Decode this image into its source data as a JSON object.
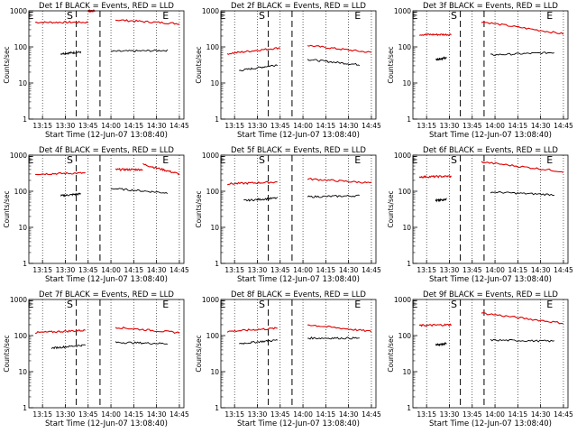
{
  "chart_data": [
    {
      "type": "line",
      "title": "Det 1f BLACK = Events, RED = LLD",
      "xlabel": "Start Time (12-Jun-07 13:08:40)",
      "ylabel": "Counts/sec",
      "x_ticks": [
        "13:15",
        "13:30",
        "13:45",
        "14:00",
        "14:15",
        "14:30",
        "14:45"
      ],
      "y_ticks": [
        "1",
        "10",
        "100",
        "1000"
      ],
      "markers": [
        "E",
        "S",
        "E"
      ],
      "series": [
        {
          "color": "#e00000",
          "segments": [
            {
              "x": [
                13.17,
                13.75
              ],
              "y": [
                480,
                480
              ]
            },
            {
              "x": [
                13.75,
                13.82
              ],
              "y": [
                1000,
                1000
              ]
            },
            {
              "x": [
                14.05,
                14.75
              ],
              "y": [
                560,
                440
              ]
            }
          ]
        },
        {
          "color": "#000000",
          "segments": [
            {
              "x": [
                13.45,
                13.67
              ],
              "y": [
                65,
                72
              ]
            },
            {
              "x": [
                14.0,
                14.62
              ],
              "y": [
                75,
                80
              ]
            }
          ]
        }
      ]
    },
    {
      "type": "line",
      "title": "Det 2f BLACK = Events, RED = LLD",
      "xlabel": "Start Time (12-Jun-07 13:08:40)",
      "ylabel": "Counts/sec",
      "x_ticks": [
        "13:15",
        "13:30",
        "13:45",
        "14:00",
        "14:15",
        "14:30",
        "14:45"
      ],
      "y_ticks": [
        "1",
        "10",
        "100",
        "1000"
      ],
      "markers": [
        "E",
        "S",
        "E"
      ],
      "series": [
        {
          "color": "#e00000",
          "segments": [
            {
              "x": [
                13.17,
                13.75
              ],
              "y": [
                65,
                95
              ]
            },
            {
              "x": [
                14.05,
                14.75
              ],
              "y": [
                110,
                70
              ]
            }
          ]
        },
        {
          "color": "#000000",
          "segments": [
            {
              "x": [
                13.3,
                13.72
              ],
              "y": [
                22,
                32
              ]
            },
            {
              "x": [
                14.05,
                14.62
              ],
              "y": [
                45,
                32
              ]
            }
          ]
        }
      ]
    },
    {
      "type": "line",
      "title": "Det 3f BLACK = Events, RED = LLD",
      "xlabel": "Start Time (12-Jun-07 13:08:40)",
      "ylabel": "Counts/sec",
      "x_ticks": [
        "13:15",
        "13:30",
        "13:45",
        "14:00",
        "14:15",
        "14:30",
        "14:45"
      ],
      "y_ticks": [
        "1",
        "10",
        "100",
        "1000"
      ],
      "markers": [
        "E",
        "S",
        "E"
      ],
      "series": [
        {
          "color": "#e00000",
          "segments": [
            {
              "x": [
                13.17,
                13.52
              ],
              "y": [
                220,
                220
              ]
            },
            {
              "x": [
                13.85,
                14.75
              ],
              "y": [
                500,
                230
              ]
            }
          ]
        },
        {
          "color": "#000000",
          "segments": [
            {
              "x": [
                13.35,
                13.47
              ],
              "y": [
                45,
                50
              ]
            },
            {
              "x": [
                13.95,
                14.65
              ],
              "y": [
                60,
                70
              ]
            }
          ]
        }
      ]
    },
    {
      "type": "line",
      "title": "Det 4f BLACK = Events, RED = LLD",
      "xlabel": "Start Time (12-Jun-07 13:08:40)",
      "ylabel": "Counts/sec",
      "x_ticks": [
        "13:15",
        "13:30",
        "13:45",
        "14:00",
        "14:15",
        "14:30",
        "14:45"
      ],
      "y_ticks": [
        "1",
        "10",
        "100",
        "1000"
      ],
      "markers": [
        "E",
        "S",
        "E"
      ],
      "series": [
        {
          "color": "#e00000",
          "segments": [
            {
              "x": [
                13.17,
                13.72
              ],
              "y": [
                300,
                320
              ]
            },
            {
              "x": [
                14.05,
                14.35
              ],
              "y": [
                400,
                400
              ]
            },
            {
              "x": [
                14.35,
                14.75
              ],
              "y": [
                560,
                300
              ]
            }
          ]
        },
        {
          "color": "#000000",
          "segments": [
            {
              "x": [
                13.45,
                13.67
              ],
              "y": [
                75,
                85
              ]
            },
            {
              "x": [
                14.0,
                14.62
              ],
              "y": [
                120,
                90
              ]
            }
          ]
        }
      ]
    },
    {
      "type": "line",
      "title": "Det 5f BLACK = Events, RED = LLD",
      "xlabel": "Start Time (12-Jun-07 13:08:40)",
      "ylabel": "Counts/sec",
      "x_ticks": [
        "13:15",
        "13:30",
        "13:45",
        "14:00",
        "14:15",
        "14:30",
        "14:45"
      ],
      "y_ticks": [
        "1",
        "10",
        "100",
        "1000"
      ],
      "markers": [
        "E",
        "S",
        "E"
      ],
      "series": [
        {
          "color": "#e00000",
          "segments": [
            {
              "x": [
                13.17,
                13.72
              ],
              "y": [
                160,
                180
              ]
            },
            {
              "x": [
                14.05,
                14.75
              ],
              "y": [
                220,
                170
              ]
            }
          ]
        },
        {
          "color": "#000000",
          "segments": [
            {
              "x": [
                13.35,
                13.72
              ],
              "y": [
                55,
                65
              ]
            },
            {
              "x": [
                14.05,
                14.62
              ],
              "y": [
                70,
                75
              ]
            }
          ]
        }
      ]
    },
    {
      "type": "line",
      "title": "Det 6f BLACK = Events, RED = LLD",
      "xlabel": "Start Time (12-Jun-07 13:08:40)",
      "ylabel": "Counts/sec",
      "x_ticks": [
        "13:15",
        "13:30",
        "13:45",
        "14:00",
        "14:15",
        "14:30",
        "14:45"
      ],
      "y_ticks": [
        "1",
        "10",
        "100",
        "1000"
      ],
      "markers": [
        "E",
        "S",
        "E"
      ],
      "series": [
        {
          "color": "#e00000",
          "segments": [
            {
              "x": [
                13.17,
                13.52
              ],
              "y": [
                250,
                260
              ]
            },
            {
              "x": [
                13.85,
                14.75
              ],
              "y": [
                650,
                350
              ]
            }
          ]
        },
        {
          "color": "#000000",
          "segments": [
            {
              "x": [
                13.35,
                13.47
              ],
              "y": [
                55,
                60
              ]
            },
            {
              "x": [
                13.95,
                14.65
              ],
              "y": [
                95,
                80
              ]
            }
          ]
        }
      ]
    },
    {
      "type": "line",
      "title": "Det 7f BLACK = Events, RED = LLD",
      "xlabel": "Start Time (12-Jun-07 13:08:40)",
      "ylabel": "Counts/sec",
      "x_ticks": [
        "13:15",
        "13:30",
        "13:45",
        "14:00",
        "14:15",
        "14:30",
        "14:45"
      ],
      "y_ticks": [
        "1",
        "10",
        "100",
        "1000"
      ],
      "markers": [
        "E",
        "S",
        "E"
      ],
      "series": [
        {
          "color": "#e00000",
          "segments": [
            {
              "x": [
                13.17,
                13.72
              ],
              "y": [
                120,
                140
              ]
            },
            {
              "x": [
                14.05,
                14.75
              ],
              "y": [
                170,
                120
              ]
            }
          ]
        },
        {
          "color": "#000000",
          "segments": [
            {
              "x": [
                13.35,
                13.72
              ],
              "y": [
                45,
                55
              ]
            },
            {
              "x": [
                14.05,
                14.62
              ],
              "y": [
                65,
                60
              ]
            }
          ]
        }
      ]
    },
    {
      "type": "line",
      "title": "Det 8f BLACK = Events, RED = LLD",
      "xlabel": "Start Time (12-Jun-07 13:08:40)",
      "ylabel": "Counts/sec",
      "x_ticks": [
        "13:15",
        "13:30",
        "13:45",
        "14:00",
        "14:15",
        "14:30",
        "14:45"
      ],
      "y_ticks": [
        "1",
        "10",
        "100",
        "1000"
      ],
      "markers": [
        "E",
        "S",
        "E"
      ],
      "series": [
        {
          "color": "#e00000",
          "segments": [
            {
              "x": [
                13.17,
                13.72
              ],
              "y": [
                130,
                160
              ]
            },
            {
              "x": [
                14.05,
                14.75
              ],
              "y": [
                200,
                130
              ]
            }
          ]
        },
        {
          "color": "#000000",
          "segments": [
            {
              "x": [
                13.3,
                13.72
              ],
              "y": [
                60,
                75
              ]
            },
            {
              "x": [
                14.05,
                14.62
              ],
              "y": [
                85,
                85
              ]
            }
          ]
        }
      ]
    },
    {
      "type": "line",
      "title": "Det 9f BLACK = Events, RED = LLD",
      "xlabel": "Start Time (12-Jun-07 13:08:40)",
      "ylabel": "Counts/sec",
      "x_ticks": [
        "13:15",
        "13:30",
        "13:45",
        "14:00",
        "14:15",
        "14:30",
        "14:45"
      ],
      "y_ticks": [
        "1",
        "10",
        "100",
        "1000"
      ],
      "markers": [
        "E",
        "S",
        "E"
      ],
      "series": [
        {
          "color": "#e00000",
          "segments": [
            {
              "x": [
                13.17,
                13.52
              ],
              "y": [
                190,
                200
              ]
            },
            {
              "x": [
                13.85,
                14.75
              ],
              "y": [
                420,
                220
              ]
            }
          ]
        },
        {
          "color": "#000000",
          "segments": [
            {
              "x": [
                13.35,
                13.47
              ],
              "y": [
                55,
                60
              ]
            },
            {
              "x": [
                13.95,
                14.65
              ],
              "y": [
                75,
                70
              ]
            }
          ]
        }
      ]
    }
  ]
}
